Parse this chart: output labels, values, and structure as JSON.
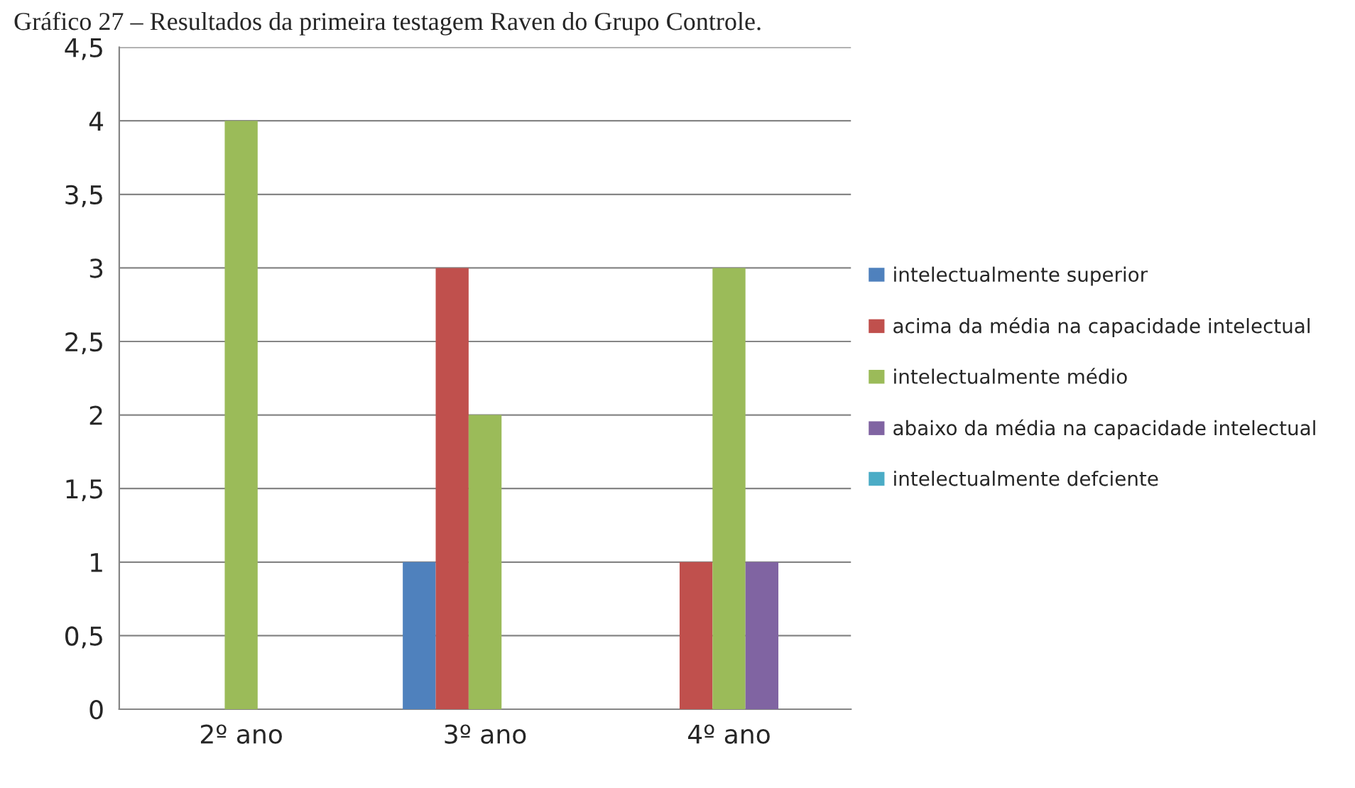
{
  "chart_data": {
    "type": "bar",
    "title": "Gráfico 27 – Resultados da primeira testagem Raven do Grupo Controle.",
    "categories": [
      "2º ano",
      "3º ano",
      "4º ano"
    ],
    "series": [
      {
        "name": "intelectualmente superior",
        "color": "#4f81bd",
        "values": [
          0,
          1,
          0
        ]
      },
      {
        "name": "acima da média na capacidade intelectual",
        "color": "#c0504d",
        "values": [
          0,
          3,
          1
        ]
      },
      {
        "name": "intelectualmente médio",
        "color": "#9bbb59",
        "values": [
          4,
          2,
          3
        ]
      },
      {
        "name": "abaixo da média na capacidade intelectual",
        "color": "#8064a2",
        "values": [
          0,
          0,
          1
        ]
      },
      {
        "name": "intelectualmente defciente",
        "color": "#4bacc6",
        "values": [
          0,
          0,
          0
        ]
      }
    ],
    "ylim": [
      0,
      4.5
    ],
    "yticks": [
      {
        "value": 0,
        "label": "0"
      },
      {
        "value": 0.5,
        "label": "0,5"
      },
      {
        "value": 1,
        "label": "1"
      },
      {
        "value": 1.5,
        "label": "1,5"
      },
      {
        "value": 2,
        "label": "2"
      },
      {
        "value": 2.5,
        "label": "2,5"
      },
      {
        "value": 3,
        "label": "3"
      },
      {
        "value": 3.5,
        "label": "3,5"
      },
      {
        "value": 4,
        "label": "4"
      },
      {
        "value": 4.5,
        "label": "4,5"
      }
    ],
    "grid": "y",
    "legend": "right"
  }
}
